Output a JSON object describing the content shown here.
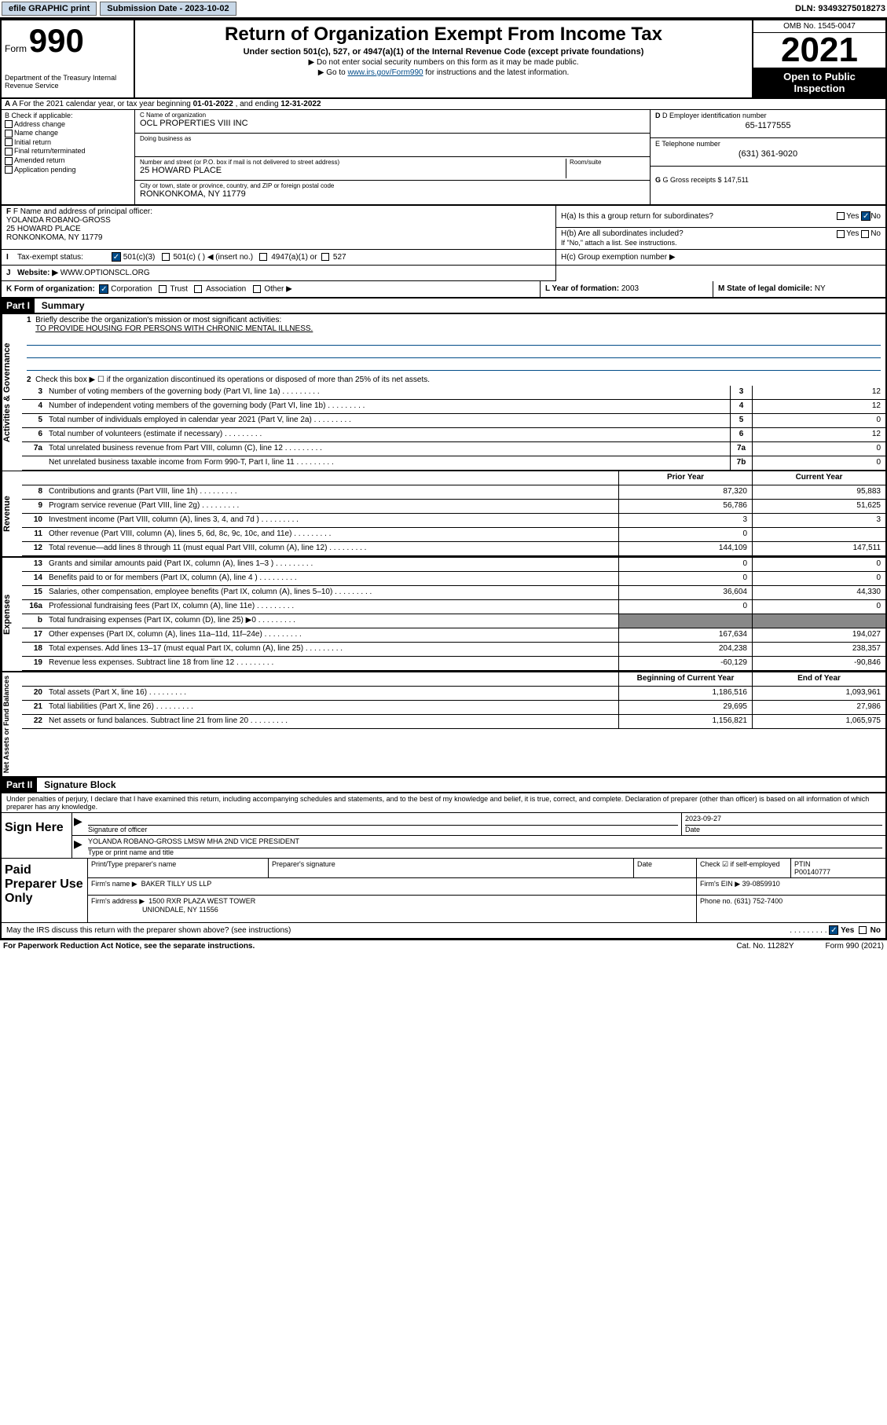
{
  "topbar": {
    "efile": "efile GRAPHIC print",
    "subdate_lbl": "Submission Date - 2023-10-02",
    "dln": "DLN: 93493275018273"
  },
  "header": {
    "form_word": "Form",
    "form_num": "990",
    "dept": "Department of the Treasury Internal Revenue Service",
    "title": "Return of Organization Exempt From Income Tax",
    "sub": "Under section 501(c), 527, or 4947(a)(1) of the Internal Revenue Code (except private foundations)",
    "note1": "▶ Do not enter social security numbers on this form as it may be made public.",
    "note2_pre": "▶ Go to ",
    "note2_link": "www.irs.gov/Form990",
    "note2_post": " for instructions and the latest information.",
    "omb": "OMB No. 1545-0047",
    "year": "2021",
    "openpub": "Open to Public Inspection"
  },
  "rowA": {
    "text_pre": "A For the 2021 calendar year, or tax year beginning ",
    "begin": "01-01-2022",
    "mid": " , and ending ",
    "end": "12-31-2022"
  },
  "colB": {
    "hdr": "B Check if applicable:",
    "items": [
      "Address change",
      "Name change",
      "Initial return",
      "Final return/terminated",
      "Amended return",
      "Application pending"
    ]
  },
  "colC": {
    "name_lbl": "C Name of organization",
    "name": "OCL PROPERTIES VIII INC",
    "dba_lbl": "Doing business as",
    "dba": "",
    "addr_lbl": "Number and street (or P.O. box if mail is not delivered to street address)",
    "addr": "25 HOWARD PLACE",
    "suite_lbl": "Room/suite",
    "city_lbl": "City or town, state or province, country, and ZIP or foreign postal code",
    "city": "RONKONKOMA, NY  11779"
  },
  "colD": {
    "ein_lbl": "D Employer identification number",
    "ein": "65-1177555",
    "tel_lbl": "E Telephone number",
    "tel": "(631) 361-9020",
    "gross_lbl": "G Gross receipts $ ",
    "gross": "147,511"
  },
  "rowF": {
    "lbl": "F Name and address of principal officer:",
    "name": "YOLANDA ROBANO-GROSS",
    "addr1": "25 HOWARD PLACE",
    "addr2": "RONKONKOMA, NY  11779"
  },
  "rowH": {
    "ha": "H(a)  Is this a group return for subordinates?",
    "hb": "H(b)  Are all subordinates included?",
    "hb_note": "If \"No,\" attach a list. See instructions.",
    "hc": "H(c)  Group exemption number ▶",
    "yes": "Yes",
    "no": "No"
  },
  "rowI": {
    "lbl": "Tax-exempt status:",
    "opt1": "501(c)(3)",
    "opt2": "501(c) (   ) ◀ (insert no.)",
    "opt3": "4947(a)(1) or",
    "opt4": "527"
  },
  "rowJ": {
    "lbl": "Website: ▶",
    "val": "WWW.OPTIONSCL.ORG"
  },
  "rowK": {
    "lbl": "K Form of organization:",
    "opts": [
      "Corporation",
      "Trust",
      "Association",
      "Other ▶"
    ]
  },
  "rowL": {
    "lbl": "L Year of formation: ",
    "val": "2003"
  },
  "rowM": {
    "lbl": "M State of legal domicile: ",
    "val": "NY"
  },
  "partI": {
    "hdr": "Part I",
    "title": "Summary",
    "line1_lbl": "Briefly describe the organization's mission or most significant activities:",
    "line1_val": "TO PROVIDE HOUSING FOR PERSONS WITH CHRONIC MENTAL ILLNESS.",
    "line2": "Check this box ▶ ☐  if the organization discontinued its operations or disposed of more than 25% of its net assets.",
    "lines_gov": [
      {
        "n": "3",
        "d": "Number of voting members of the governing body (Part VI, line 1a)",
        "box": "3",
        "cur": "12"
      },
      {
        "n": "4",
        "d": "Number of independent voting members of the governing body (Part VI, line 1b)",
        "box": "4",
        "cur": "12"
      },
      {
        "n": "5",
        "d": "Total number of individuals employed in calendar year 2021 (Part V, line 2a)",
        "box": "5",
        "cur": "0"
      },
      {
        "n": "6",
        "d": "Total number of volunteers (estimate if necessary)",
        "box": "6",
        "cur": "12"
      },
      {
        "n": "7a",
        "d": "Total unrelated business revenue from Part VIII, column (C), line 12",
        "box": "7a",
        "cur": "0"
      },
      {
        "n": "",
        "d": "Net unrelated business taxable income from Form 990-T, Part I, line 11",
        "box": "7b",
        "cur": "0"
      }
    ],
    "prior_hdr": "Prior Year",
    "curr_hdr": "Current Year",
    "lines_rev": [
      {
        "n": "8",
        "d": "Contributions and grants (Part VIII, line 1h)",
        "p": "87,320",
        "c": "95,883"
      },
      {
        "n": "9",
        "d": "Program service revenue (Part VIII, line 2g)",
        "p": "56,786",
        "c": "51,625"
      },
      {
        "n": "10",
        "d": "Investment income (Part VIII, column (A), lines 3, 4, and 7d )",
        "p": "3",
        "c": "3"
      },
      {
        "n": "11",
        "d": "Other revenue (Part VIII, column (A), lines 5, 6d, 8c, 9c, 10c, and 11e)",
        "p": "0",
        "c": ""
      },
      {
        "n": "12",
        "d": "Total revenue—add lines 8 through 11 (must equal Part VIII, column (A), line 12)",
        "p": "144,109",
        "c": "147,511"
      }
    ],
    "lines_exp": [
      {
        "n": "13",
        "d": "Grants and similar amounts paid (Part IX, column (A), lines 1–3 )",
        "p": "0",
        "c": "0"
      },
      {
        "n": "14",
        "d": "Benefits paid to or for members (Part IX, column (A), line 4 )",
        "p": "0",
        "c": "0"
      },
      {
        "n": "15",
        "d": "Salaries, other compensation, employee benefits (Part IX, column (A), lines 5–10)",
        "p": "36,604",
        "c": "44,330"
      },
      {
        "n": "16a",
        "d": "Professional fundraising fees (Part IX, column (A), line 11e)",
        "p": "0",
        "c": "0"
      },
      {
        "n": "b",
        "d": "Total fundraising expenses (Part IX, column (D), line 25) ▶0",
        "p": "",
        "c": "",
        "shade": true
      },
      {
        "n": "17",
        "d": "Other expenses (Part IX, column (A), lines 11a–11d, 11f–24e)",
        "p": "167,634",
        "c": "194,027"
      },
      {
        "n": "18",
        "d": "Total expenses. Add lines 13–17 (must equal Part IX, column (A), line 25)",
        "p": "204,238",
        "c": "238,357"
      },
      {
        "n": "19",
        "d": "Revenue less expenses. Subtract line 18 from line 12",
        "p": "-60,129",
        "c": "-90,846"
      }
    ],
    "boy_hdr": "Beginning of Current Year",
    "eoy_hdr": "End of Year",
    "lines_net": [
      {
        "n": "20",
        "d": "Total assets (Part X, line 16)",
        "p": "1,186,516",
        "c": "1,093,961"
      },
      {
        "n": "21",
        "d": "Total liabilities (Part X, line 26)",
        "p": "29,695",
        "c": "27,986"
      },
      {
        "n": "22",
        "d": "Net assets or fund balances. Subtract line 21 from line 20",
        "p": "1,156,821",
        "c": "1,065,975"
      }
    ]
  },
  "vtabs": {
    "gov": "Activities & Governance",
    "rev": "Revenue",
    "exp": "Expenses",
    "net": "Net Assets or Fund Balances"
  },
  "partII": {
    "hdr": "Part II",
    "title": "Signature Block",
    "decl": "Under penalties of perjury, I declare that I have examined this return, including accompanying schedules and statements, and to the best of my knowledge and belief, it is true, correct, and complete. Declaration of preparer (other than officer) is based on all information of which preparer has any knowledge.",
    "sign_here": "Sign Here",
    "sig_lbl": "Signature of officer",
    "date_lbl": "Date",
    "date_val": "2023-09-27",
    "name_val": "YOLANDA ROBANO-GROSS LMSW MHA  2ND VICE PRESIDENT",
    "name_lbl": "Type or print name and title",
    "paid": "Paid Preparer Use Only",
    "pp_name_lbl": "Print/Type preparer's name",
    "pp_sig_lbl": "Preparer's signature",
    "pp_date_lbl": "Date",
    "pp_check_lbl": "Check ☑ if self-employed",
    "pp_ptin_lbl": "PTIN",
    "pp_ptin": "P00140777",
    "firm_name_lbl": "Firm's name    ▶",
    "firm_name": "BAKER TILLY US LLP",
    "firm_ein_lbl": "Firm's EIN ▶",
    "firm_ein": "39-0859910",
    "firm_addr_lbl": "Firm's address ▶",
    "firm_addr1": "1500 RXR PLAZA WEST TOWER",
    "firm_addr2": "UNIONDALE, NY  11556",
    "firm_phone_lbl": "Phone no. ",
    "firm_phone": "(631) 752-7400",
    "discuss": "May the IRS discuss this return with the preparer shown above? (see instructions)"
  },
  "footer": {
    "l": "For Paperwork Reduction Act Notice, see the separate instructions.",
    "m": "Cat. No. 11282Y",
    "r": "Form 990 (2021)"
  }
}
